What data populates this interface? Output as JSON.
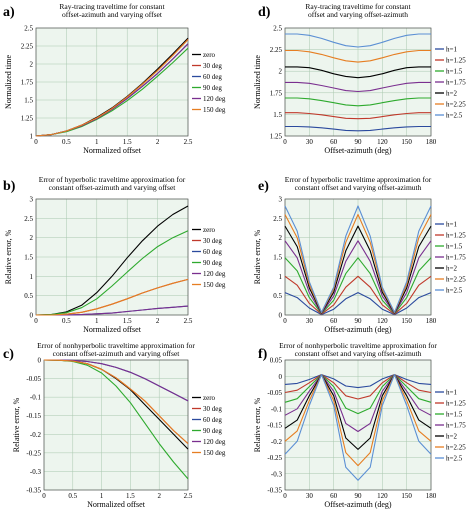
{
  "chart_data": [
    {
      "panel_label": "a)",
      "type": "line",
      "title": [
        "Ray-tracing traveltime for constant",
        "offset-azimuth and varying offset"
      ],
      "xlabel": "Normalized offset",
      "ylabel": "Normalized time",
      "xlim": [
        0,
        2.5
      ],
      "ylim": [
        1,
        2.5
      ],
      "xticks": [
        0,
        0.5,
        1,
        1.5,
        2,
        2.5
      ],
      "xtick_labels": [
        "0",
        "0.5",
        "1",
        "1.5",
        "2",
        "2.5"
      ],
      "yticks": [
        1,
        1.25,
        1.5,
        1.75,
        2,
        2.25,
        2.5
      ],
      "ytick_labels": [
        "1",
        "1.25",
        "1.5",
        "1.75",
        "2",
        "2.25",
        "2.5"
      ],
      "grid": true,
      "legend": "right",
      "x": [
        0,
        0.25,
        0.5,
        0.75,
        1,
        1.25,
        1.5,
        1.75,
        2,
        2.25,
        2.5
      ],
      "series": [
        {
          "name": "zero",
          "color": "#000000",
          "values": [
            1,
            1.02,
            1.07,
            1.15,
            1.26,
            1.39,
            1.55,
            1.73,
            1.93,
            2.14,
            2.36
          ]
        },
        {
          "name": "30 deg",
          "color": "#c0392b",
          "values": [
            1,
            1.02,
            1.07,
            1.15,
            1.25,
            1.38,
            1.54,
            1.72,
            1.91,
            2.12,
            2.34
          ]
        },
        {
          "name": "60 deg",
          "color": "#2b4a9e",
          "values": [
            1,
            1.02,
            1.07,
            1.14,
            1.24,
            1.37,
            1.52,
            1.69,
            1.87,
            2.07,
            2.28
          ]
        },
        {
          "name": "90 deg",
          "color": "#2eaa2e",
          "values": [
            1,
            1.02,
            1.06,
            1.13,
            1.23,
            1.35,
            1.49,
            1.65,
            1.83,
            2.02,
            2.22
          ]
        },
        {
          "name": "120 deg",
          "color": "#7a2f8f",
          "values": [
            1,
            1.02,
            1.07,
            1.14,
            1.24,
            1.37,
            1.52,
            1.69,
            1.87,
            2.07,
            2.28
          ]
        },
        {
          "name": "150 deg",
          "color": "#e67e22",
          "values": [
            1,
            1.02,
            1.07,
            1.15,
            1.25,
            1.38,
            1.54,
            1.72,
            1.91,
            2.12,
            2.34
          ]
        }
      ]
    },
    {
      "panel_label": "d)",
      "type": "line",
      "title": [
        "Ray-tracing traveltime for constant",
        "offset and varying offset-azimuth"
      ],
      "xlabel": "Offset-azimuth (deg)",
      "ylabel": "Normalized time",
      "xlim": [
        0,
        180
      ],
      "ylim": [
        1.25,
        2.5
      ],
      "xticks": [
        0,
        30,
        60,
        90,
        120,
        150,
        180
      ],
      "xtick_labels": [
        "0",
        "30",
        "60",
        "90",
        "120",
        "150",
        "180"
      ],
      "yticks": [
        1.25,
        1.5,
        1.75,
        2,
        2.25,
        2.5
      ],
      "ytick_labels": [
        "1.25",
        "1.5",
        "1.75",
        "2",
        "2.25",
        "2.5"
      ],
      "grid": true,
      "legend": "right",
      "x": [
        0,
        15,
        30,
        45,
        60,
        75,
        90,
        105,
        120,
        135,
        150,
        165,
        180
      ],
      "series": [
        {
          "name": "h=1",
          "color": "#2b4a9e",
          "values": [
            1.36,
            1.36,
            1.355,
            1.345,
            1.33,
            1.315,
            1.31,
            1.315,
            1.33,
            1.345,
            1.355,
            1.36,
            1.36
          ]
        },
        {
          "name": "h=1.25",
          "color": "#c0392b",
          "values": [
            1.52,
            1.52,
            1.51,
            1.495,
            1.475,
            1.455,
            1.45,
            1.455,
            1.475,
            1.495,
            1.51,
            1.52,
            1.52
          ]
        },
        {
          "name": "h=1.5",
          "color": "#2eaa2e",
          "values": [
            1.69,
            1.69,
            1.68,
            1.66,
            1.635,
            1.61,
            1.6,
            1.61,
            1.635,
            1.66,
            1.68,
            1.69,
            1.69
          ]
        },
        {
          "name": "h=1.75",
          "color": "#7a2f8f",
          "values": [
            1.87,
            1.87,
            1.86,
            1.835,
            1.805,
            1.775,
            1.765,
            1.775,
            1.805,
            1.835,
            1.86,
            1.87,
            1.87
          ]
        },
        {
          "name": "h=2",
          "color": "#000000",
          "values": [
            2.05,
            2.05,
            2.04,
            2.01,
            1.97,
            1.94,
            1.925,
            1.94,
            1.97,
            2.01,
            2.04,
            2.05,
            2.05
          ]
        },
        {
          "name": "h=2.25",
          "color": "#e67e22",
          "values": [
            2.24,
            2.24,
            2.225,
            2.195,
            2.155,
            2.12,
            2.105,
            2.12,
            2.155,
            2.195,
            2.225,
            2.24,
            2.24
          ]
        },
        {
          "name": "h=2.5",
          "color": "#5b8fd4",
          "values": [
            2.43,
            2.43,
            2.415,
            2.38,
            2.335,
            2.295,
            2.28,
            2.295,
            2.335,
            2.38,
            2.415,
            2.43,
            2.43
          ]
        }
      ]
    },
    {
      "panel_label": "b)",
      "type": "line",
      "title": [
        "Error of hyperbolic traveltime approximation for",
        "constant offset-azimuth and varying offset"
      ],
      "xlabel": "Normalized offset",
      "ylabel": "Relative error, %",
      "xlim": [
        0,
        2.5
      ],
      "ylim": [
        0,
        3
      ],
      "xticks": [
        0,
        0.5,
        1,
        1.5,
        2,
        2.5
      ],
      "xtick_labels": [
        "0",
        "0.5",
        "1",
        "1.5",
        "2",
        "2.5"
      ],
      "yticks": [
        0,
        0.5,
        1,
        1.5,
        2,
        2.5,
        3
      ],
      "ytick_labels": [
        "0",
        "0.5",
        "1",
        "1.5",
        "2",
        "2.5",
        "3"
      ],
      "grid": true,
      "legend": "right",
      "x": [
        0,
        0.25,
        0.5,
        0.75,
        1,
        1.25,
        1.5,
        1.75,
        2,
        2.25,
        2.5
      ],
      "series": [
        {
          "name": "zero",
          "color": "#000000",
          "values": [
            0,
            0.01,
            0.08,
            0.25,
            0.58,
            1.0,
            1.48,
            1.92,
            2.3,
            2.6,
            2.82
          ]
        },
        {
          "name": "30 deg",
          "color": "#c0392b",
          "values": [
            0,
            0.0,
            0.02,
            0.07,
            0.16,
            0.28,
            0.42,
            0.57,
            0.7,
            0.82,
            0.92
          ]
        },
        {
          "name": "60 deg",
          "color": "#2b4a9e",
          "values": [
            0,
            0.0,
            0.0,
            0.01,
            0.03,
            0.05,
            0.09,
            0.13,
            0.17,
            0.2,
            0.23
          ]
        },
        {
          "name": "90 deg",
          "color": "#2eaa2e",
          "values": [
            0,
            0.01,
            0.06,
            0.19,
            0.42,
            0.75,
            1.11,
            1.46,
            1.77,
            2.0,
            2.18
          ]
        },
        {
          "name": "120 deg",
          "color": "#7a2f8f",
          "values": [
            0,
            0.0,
            0.0,
            0.01,
            0.03,
            0.05,
            0.09,
            0.13,
            0.17,
            0.2,
            0.23
          ]
        },
        {
          "name": "150 deg",
          "color": "#e67e22",
          "values": [
            0,
            0.0,
            0.02,
            0.07,
            0.16,
            0.28,
            0.42,
            0.57,
            0.7,
            0.82,
            0.92
          ]
        }
      ]
    },
    {
      "panel_label": "e)",
      "type": "line",
      "title": [
        "Error of hyperbolic traveltime approximation for",
        "constant offset and varying offset-azimuth"
      ],
      "xlabel": "Offset-azimuth (deg)",
      "ylabel": "Relative error, %",
      "xlim": [
        0,
        180
      ],
      "ylim": [
        0,
        3
      ],
      "xticks": [
        0,
        30,
        60,
        90,
        120,
        150,
        180
      ],
      "xtick_labels": [
        "0",
        "30",
        "60",
        "90",
        "120",
        "150",
        "180"
      ],
      "yticks": [
        0,
        0.5,
        1,
        1.5,
        2,
        2.5,
        3
      ],
      "ytick_labels": [
        "0",
        "0.5",
        "1",
        "1.5",
        "2",
        "2.5",
        "3"
      ],
      "grid": true,
      "legend": "right",
      "x": [
        0,
        15,
        30,
        45,
        60,
        75,
        90,
        105,
        120,
        135,
        150,
        165,
        180
      ],
      "series": [
        {
          "name": "h=1",
          "color": "#2b4a9e",
          "values": [
            0.58,
            0.45,
            0.18,
            0.01,
            0.15,
            0.42,
            0.58,
            0.42,
            0.15,
            0.01,
            0.18,
            0.45,
            0.58
          ]
        },
        {
          "name": "h=1.25",
          "color": "#c0392b",
          "values": [
            1.0,
            0.77,
            0.3,
            0.02,
            0.26,
            0.72,
            1.0,
            0.72,
            0.26,
            0.02,
            0.3,
            0.77,
            1.0
          ]
        },
        {
          "name": "h=1.5",
          "color": "#2eaa2e",
          "values": [
            1.48,
            1.14,
            0.45,
            0.03,
            0.38,
            1.07,
            1.48,
            1.07,
            0.38,
            0.03,
            0.45,
            1.14,
            1.48
          ]
        },
        {
          "name": "h=1.75",
          "color": "#7a2f8f",
          "values": [
            1.92,
            1.48,
            0.58,
            0.04,
            0.49,
            1.39,
            1.92,
            1.39,
            0.49,
            0.04,
            0.58,
            1.48,
            1.92
          ]
        },
        {
          "name": "h=2",
          "color": "#000000",
          "values": [
            2.3,
            1.77,
            0.7,
            0.05,
            0.59,
            1.66,
            2.3,
            1.66,
            0.59,
            0.05,
            0.7,
            1.77,
            2.3
          ]
        },
        {
          "name": "h=2.25",
          "color": "#e67e22",
          "values": [
            2.6,
            2.0,
            0.79,
            0.06,
            0.67,
            1.88,
            2.6,
            1.88,
            0.67,
            0.06,
            0.79,
            2.0,
            2.6
          ]
        },
        {
          "name": "h=2.5",
          "color": "#5b8fd4",
          "values": [
            2.82,
            2.17,
            0.86,
            0.07,
            0.72,
            2.04,
            2.82,
            2.04,
            0.72,
            0.07,
            0.86,
            2.17,
            2.82
          ]
        }
      ]
    },
    {
      "panel_label": "c)",
      "type": "line",
      "title": [
        "Error of nonhyperbolic traveltime approximation for",
        "constant offset-azimuth and varying offset"
      ],
      "xlabel": "Normalized offset",
      "ylabel": "Relative error, %",
      "xlim": [
        0,
        2.5
      ],
      "ylim": [
        -0.35,
        0
      ],
      "xticks": [
        0,
        0.5,
        1,
        1.5,
        2,
        2.5
      ],
      "xtick_labels": [
        "0",
        "0.5",
        "1",
        "1.5",
        "2",
        "2.5"
      ],
      "yticks": [
        -0.35,
        -0.3,
        -0.25,
        -0.2,
        -0.15,
        -0.1,
        -0.05,
        0
      ],
      "ytick_labels": [
        "-0.35",
        "-0.3",
        "-0.25",
        "-0.2",
        "-0.15",
        "-0.1",
        "-0.05",
        "0"
      ],
      "grid": true,
      "legend": "right",
      "x": [
        0,
        0.25,
        0.5,
        0.75,
        1,
        1.25,
        1.5,
        1.75,
        2,
        2.25,
        2.5
      ],
      "series": [
        {
          "name": "zero",
          "color": "#000000",
          "values": [
            0,
            -0.0005,
            -0.003,
            -0.01,
            -0.025,
            -0.05,
            -0.08,
            -0.12,
            -0.16,
            -0.2,
            -0.24
          ]
        },
        {
          "name": "30 deg",
          "color": "#c0392b",
          "values": [
            0,
            -0.0005,
            -0.003,
            -0.01,
            -0.025,
            -0.048,
            -0.078,
            -0.11,
            -0.15,
            -0.19,
            -0.225
          ]
        },
        {
          "name": "60 deg",
          "color": "#2b4a9e",
          "values": [
            0,
            0,
            -0.001,
            -0.004,
            -0.01,
            -0.02,
            -0.033,
            -0.05,
            -0.07,
            -0.09,
            -0.11
          ]
        },
        {
          "name": "90 deg",
          "color": "#2eaa2e",
          "values": [
            0,
            -0.0005,
            -0.004,
            -0.014,
            -0.035,
            -0.07,
            -0.115,
            -0.17,
            -0.225,
            -0.275,
            -0.32
          ]
        },
        {
          "name": "120 deg",
          "color": "#7a2f8f",
          "values": [
            0,
            0,
            -0.001,
            -0.004,
            -0.01,
            -0.02,
            -0.033,
            -0.05,
            -0.07,
            -0.09,
            -0.11
          ]
        },
        {
          "name": "150 deg",
          "color": "#e67e22",
          "values": [
            0,
            -0.0005,
            -0.003,
            -0.01,
            -0.025,
            -0.048,
            -0.078,
            -0.11,
            -0.15,
            -0.19,
            -0.225
          ]
        }
      ]
    },
    {
      "panel_label": "f)",
      "type": "line",
      "title": [
        "Error of nonhyperbolic traveltime approximation for",
        "constant offset and varying offset-azimuth"
      ],
      "xlabel": "Offset-azimuth (deg)",
      "ylabel": "Relative error, %",
      "xlim": [
        0,
        180
      ],
      "ylim": [
        -0.35,
        0.05
      ],
      "xticks": [
        0,
        30,
        60,
        90,
        120,
        150,
        180
      ],
      "xtick_labels": [
        "0",
        "30",
        "60",
        "90",
        "120",
        "150",
        "180"
      ],
      "yticks": [
        -0.35,
        -0.3,
        -0.25,
        -0.2,
        -0.15,
        -0.1,
        -0.05,
        0,
        0.05
      ],
      "ytick_labels": [
        "-0.35",
        "-0.3",
        "-0.25",
        "-0.2",
        "-0.15",
        "-0.1",
        "-0.05",
        "0",
        "0.05"
      ],
      "grid": true,
      "legend": "right",
      "x": [
        0,
        15,
        30,
        45,
        60,
        75,
        90,
        105,
        120,
        135,
        150,
        165,
        180
      ],
      "series": [
        {
          "name": "h=1",
          "color": "#2b4a9e",
          "values": [
            -0.025,
            -0.022,
            -0.01,
            0.005,
            -0.008,
            -0.03,
            -0.035,
            -0.03,
            -0.008,
            0.005,
            -0.01,
            -0.022,
            -0.025
          ]
        },
        {
          "name": "h=1.25",
          "color": "#c0392b",
          "values": [
            -0.05,
            -0.043,
            -0.02,
            0.005,
            -0.02,
            -0.06,
            -0.07,
            -0.06,
            -0.02,
            0.005,
            -0.02,
            -0.043,
            -0.05
          ]
        },
        {
          "name": "h=1.5",
          "color": "#2eaa2e",
          "values": [
            -0.08,
            -0.069,
            -0.032,
            0.005,
            -0.032,
            -0.098,
            -0.115,
            -0.098,
            -0.032,
            0.005,
            -0.032,
            -0.069,
            -0.08
          ]
        },
        {
          "name": "h=1.75",
          "color": "#7a2f8f",
          "values": [
            -0.12,
            -0.1,
            -0.046,
            0.005,
            -0.046,
            -0.145,
            -0.17,
            -0.145,
            -0.046,
            0.005,
            -0.046,
            -0.1,
            -0.12
          ]
        },
        {
          "name": "h=2",
          "color": "#000000",
          "values": [
            -0.16,
            -0.135,
            -0.06,
            0.005,
            -0.06,
            -0.19,
            -0.225,
            -0.19,
            -0.06,
            0.005,
            -0.06,
            -0.135,
            -0.16
          ]
        },
        {
          "name": "h=2.25",
          "color": "#e67e22",
          "values": [
            -0.2,
            -0.168,
            -0.075,
            0.005,
            -0.075,
            -0.235,
            -0.275,
            -0.235,
            -0.075,
            0.005,
            -0.075,
            -0.168,
            -0.2
          ]
        },
        {
          "name": "h=2.5",
          "color": "#5b8fd4",
          "values": [
            -0.24,
            -0.2,
            -0.09,
            0.005,
            -0.09,
            -0.28,
            -0.32,
            -0.28,
            -0.09,
            0.005,
            -0.09,
            -0.2,
            -0.24
          ]
        }
      ]
    }
  ]
}
